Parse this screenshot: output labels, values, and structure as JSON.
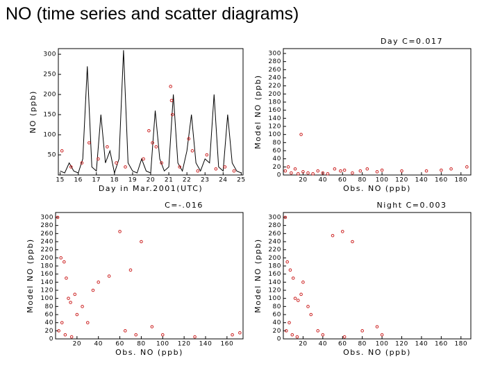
{
  "title": "NO (time series and scatter diagrams)",
  "chart_data": [
    {
      "type": "line",
      "xlabel": "Day in Mar.2001(UTC)",
      "ylabel": "NO (ppb)",
      "xlim": [
        14.9,
        25.1
      ],
      "ylim": [
        0,
        314
      ],
      "xticks": [
        15,
        16,
        17,
        18,
        19,
        20,
        21,
        22,
        23,
        24,
        25
      ],
      "yticks": [
        50,
        100,
        150,
        200,
        250,
        300
      ],
      "series": [
        {
          "type": "line",
          "color": "#000000",
          "x": [
            15,
            15.25,
            15.5,
            15.75,
            16,
            16.25,
            16.5,
            16.75,
            17,
            17.25,
            17.5,
            17.75,
            18,
            18.25,
            18.5,
            18.75,
            19,
            19.25,
            19.5,
            19.75,
            20,
            20.25,
            20.5,
            20.75,
            21,
            21.25,
            21.5,
            21.75,
            22,
            22.25,
            22.5,
            22.75,
            23,
            23.25,
            23.5,
            23.75,
            24,
            24.25,
            24.5,
            24.75,
            25
          ],
          "values": [
            10,
            5,
            30,
            10,
            5,
            40,
            270,
            20,
            10,
            150,
            30,
            60,
            5,
            40,
            310,
            30,
            10,
            5,
            40,
            10,
            5,
            160,
            40,
            10,
            20,
            200,
            30,
            10,
            60,
            150,
            30,
            10,
            40,
            30,
            200,
            20,
            10,
            150,
            30,
            10,
            5
          ]
        },
        {
          "type": "scatter",
          "color": "#cc2222",
          "x": [
            15.1,
            15.6,
            16.2,
            16.6,
            17.1,
            17.6,
            18.1,
            18.6,
            19.6,
            19.9,
            20.1,
            20.3,
            20.6,
            21.1,
            21.15,
            21.2,
            21.6,
            22.1,
            22.3,
            22.6,
            23.1,
            23.6,
            24.1,
            24.6
          ],
          "values": [
            60,
            20,
            30,
            80,
            40,
            70,
            30,
            20,
            40,
            110,
            80,
            70,
            30,
            220,
            185,
            150,
            20,
            90,
            60,
            10,
            50,
            15,
            20,
            10
          ]
        }
      ]
    },
    {
      "type": "scatter",
      "title": "Day C=0.017",
      "xlabel": "Obs. NO (ppb)",
      "ylabel": "Model NO (ppb)",
      "color": "#cc2222",
      "xlim": [
        0,
        190
      ],
      "ylim": [
        0,
        312
      ],
      "xticks": [
        20,
        40,
        60,
        80,
        100,
        120,
        140,
        160,
        180
      ],
      "yticks": [
        0,
        20,
        40,
        60,
        80,
        100,
        120,
        140,
        160,
        180,
        200,
        220,
        240,
        260,
        280,
        300
      ],
      "x": [
        2,
        5,
        8,
        12,
        15,
        18,
        20,
        25,
        30,
        35,
        40,
        45,
        52,
        58,
        62,
        70,
        78,
        85,
        95,
        100,
        120,
        145,
        160,
        170,
        186
      ],
      "values": [
        10,
        20,
        5,
        15,
        3,
        100,
        8,
        5,
        3,
        10,
        5,
        3,
        15,
        10,
        12,
        5,
        10,
        15,
        8,
        12,
        10,
        10,
        12,
        15,
        20
      ]
    },
    {
      "type": "scatter",
      "title": "C=-.016",
      "xlabel": "Obs. NO (ppb)",
      "ylabel": "Model NO (ppb)",
      "color": "#cc2222",
      "xlim": [
        0,
        175
      ],
      "ylim": [
        0,
        312
      ],
      "xticks": [
        20,
        40,
        60,
        80,
        100,
        120,
        140,
        160
      ],
      "yticks": [
        0,
        20,
        40,
        60,
        80,
        100,
        120,
        140,
        160,
        180,
        200,
        220,
        240,
        260,
        280,
        300
      ],
      "x": [
        2,
        5,
        8,
        10,
        12,
        14,
        18,
        20,
        25,
        30,
        35,
        40,
        50,
        60,
        65,
        70,
        75,
        80,
        90,
        100,
        130,
        165,
        172,
        3,
        6,
        9,
        15
      ],
      "values": [
        300,
        200,
        190,
        150,
        100,
        90,
        110,
        60,
        80,
        40,
        120,
        140,
        155,
        265,
        20,
        170,
        10,
        240,
        30,
        10,
        5,
        10,
        15,
        20,
        40,
        10,
        5
      ]
    },
    {
      "type": "scatter",
      "title": "Night C=0.003",
      "xlabel": "Obs. NO (ppb)",
      "ylabel": "Model NO (ppb)",
      "color": "#cc2222",
      "xlim": [
        0,
        190
      ],
      "ylim": [
        0,
        312
      ],
      "xticks": [
        20,
        40,
        60,
        80,
        100,
        120,
        140,
        160,
        180
      ],
      "yticks": [
        0,
        20,
        40,
        60,
        80,
        100,
        120,
        140,
        160,
        180,
        200,
        220,
        240,
        260,
        280,
        300
      ],
      "x": [
        2,
        4,
        7,
        10,
        12,
        15,
        18,
        20,
        25,
        28,
        35,
        40,
        50,
        60,
        62,
        70,
        80,
        95,
        100,
        3,
        6,
        9,
        14
      ],
      "values": [
        300,
        190,
        170,
        150,
        100,
        95,
        110,
        140,
        80,
        60,
        20,
        10,
        255,
        265,
        5,
        240,
        20,
        30,
        10,
        20,
        40,
        10,
        5
      ]
    }
  ]
}
